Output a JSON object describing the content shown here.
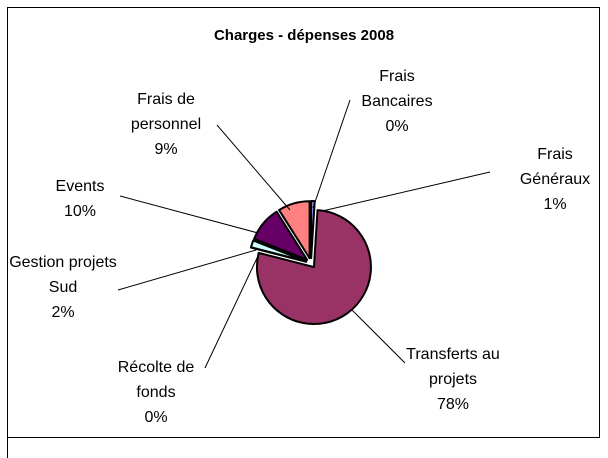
{
  "chart_data": {
    "type": "pie",
    "title": "Charges - dépenses 2008",
    "categories": [
      "Frais Généraux",
      "Transferts au projets",
      "Récolte de fonds",
      "Gestion projets Sud",
      "Events",
      "Frais de personnel",
      "Frais Bancaires"
    ],
    "values": [
      1,
      78,
      0,
      2,
      10,
      9,
      0
    ],
    "value_labels": [
      "1%",
      "78%",
      "0%",
      "2%",
      "10%",
      "9%",
      "0%"
    ],
    "colors": [
      "#9999ff",
      "#993366",
      "#ffffcc",
      "#ccffff",
      "#660066",
      "#ff8080",
      "#0066cc"
    ]
  }
}
